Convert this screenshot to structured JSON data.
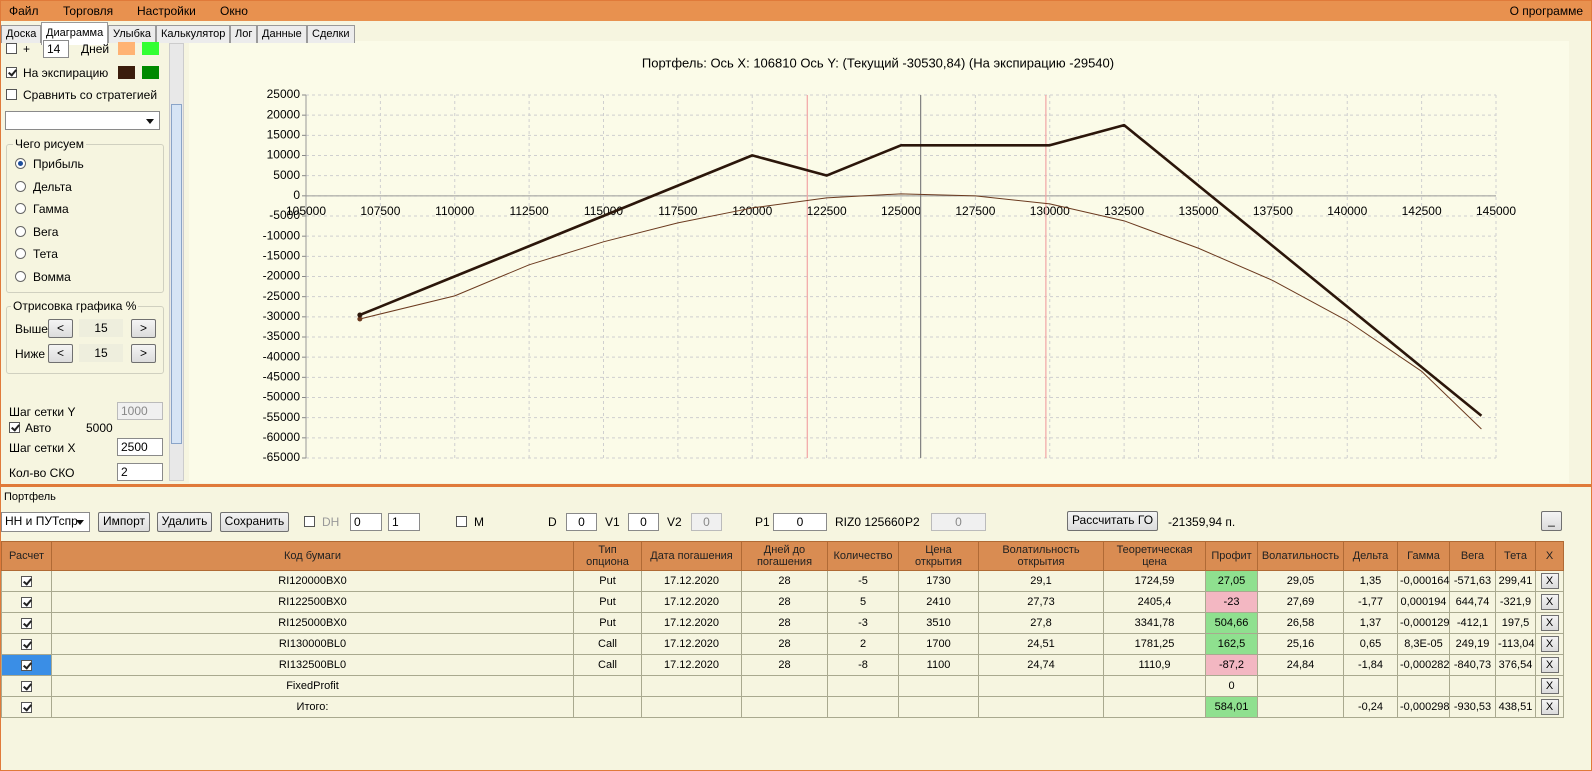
{
  "menu": [
    "Файл",
    "Торговля",
    "Настройки",
    "Окно"
  ],
  "about": "О программе",
  "tabs": [
    "Доска",
    "Диаграмма",
    "Улыбка",
    "Калькулятор",
    "Лог",
    "Данные",
    "Сделки"
  ],
  "settings": {
    "plus": "+",
    "days_value": "14",
    "days_label": "Дней",
    "expiry_label": "На экспирацию",
    "compare_label": "Сравнить со стратегией",
    "draw_group": "Чего рисуем",
    "draw_options": [
      "Прибыль",
      "Дельта",
      "Гамма",
      "Вега",
      "Тета",
      "Вомма"
    ],
    "plot_group": "Отрисовка графика %",
    "above_label": "Выше",
    "above_value": "15",
    "below_label": "Ниже",
    "below_value": "15",
    "prev": "<",
    "next": ">",
    "grid_y_label": "Шаг сетки Y",
    "grid_y_value": "1000",
    "auto_label": "Авто",
    "auto_value": "5000",
    "grid_x_label": "Шаг сетки X",
    "grid_x_value": "2500",
    "sko_label": "Кол-во СКО",
    "sko_value": "2"
  },
  "chart_data": {
    "type": "line",
    "title": "Портфель: Ось X: 106810 Ось Y:  (Текущий -30530,84)  (На экспирацию -29540)",
    "x": [
      106810,
      110000,
      112500,
      115000,
      117500,
      120000,
      122500,
      125000,
      127500,
      130000,
      132500,
      135000,
      137500,
      140000,
      142500,
      144510
    ],
    "series": [
      {
        "color": "#6b3a1f",
        "width": 1,
        "values": [
          -30530.84,
          -24800,
          -17100,
          -11400,
          -6700,
          -3000,
          -500,
          500,
          0,
          -2000,
          -6200,
          -13000,
          -21000,
          -31000,
          -43500,
          -57800
        ]
      },
      {
        "color": "#2b160a",
        "width": 2.6,
        "values": [
          -29540,
          -19970,
          -12470,
          -4970,
          2530,
          10030,
          5030,
          12530,
          12530,
          12530,
          17530,
          2530,
          -12470,
          -27470,
          -42470,
          -54530
        ]
      }
    ],
    "reference_lines": [
      {
        "value": 121850,
        "color": "#f2a5a5"
      },
      {
        "value": 129870,
        "color": "#f2a5a5"
      },
      {
        "value": 125660,
        "color": "#808080"
      }
    ],
    "xlim": [
      105000,
      145000
    ],
    "xticks": [
      105000,
      107500,
      110000,
      112500,
      115000,
      117500,
      120000,
      122500,
      125000,
      127500,
      130000,
      132500,
      135000,
      137500,
      140000,
      142500,
      145000
    ],
    "ylim": [
      -65000,
      25000
    ],
    "yticks": [
      25000,
      20000,
      15000,
      10000,
      5000,
      0,
      -5000,
      -10000,
      -15000,
      -20000,
      -25000,
      -30000,
      -35000,
      -40000,
      -45000,
      -50000,
      -55000,
      -60000,
      -65000
    ],
    "grid": true
  },
  "portfolio": {
    "title": "Портфель",
    "strategy": "НН и ПУТспр",
    "buttons": [
      "Импорт",
      "Удалить",
      "Сохранить"
    ],
    "dh_label": "DH",
    "spin1": "0",
    "spin2": "1",
    "m_label": "M",
    "d_label": "D",
    "d_value": "0",
    "v1_label": "V1",
    "v1_value": "0",
    "v2_label": "V2",
    "v2_value": "0",
    "p1_label": "P1",
    "p1_value": "0",
    "underlying": "RIZ0 125660",
    "p2_label": "P2",
    "p2_value": "0",
    "go_button": "Рассчитать ГО",
    "go_value": "-21359,94 п.",
    "minimize": "_"
  },
  "table": {
    "columns": [
      "Расчет",
      "Код бумаги",
      "Тип опциона",
      "Дата погашения",
      "Дней до погашения",
      "Количество",
      "Цена открытия",
      "Волатильность открытия",
      "Теоретическая цена",
      "Профит",
      "Волатильность",
      "Дельта",
      "Гамма",
      "Вега",
      "Тета",
      "X"
    ],
    "rows": [
      [
        "RI120000BX0",
        "Put",
        "17.12.2020",
        "28",
        "-5",
        "1730",
        "29,1",
        "1724,59",
        "27,05",
        "29,05",
        "1,35",
        "-0,000164",
        "-571,63",
        "299,41",
        "X"
      ],
      [
        "RI122500BX0",
        "Put",
        "17.12.2020",
        "28",
        "5",
        "2410",
        "27,73",
        "2405,4",
        "-23",
        "27,69",
        "-1,77",
        "0,000194",
        "644,74",
        "-321,9",
        "X"
      ],
      [
        "RI125000BX0",
        "Put",
        "17.12.2020",
        "28",
        "-3",
        "3510",
        "27,8",
        "3341,78",
        "504,66",
        "26,58",
        "1,37",
        "-0,000129",
        "-412,1",
        "197,5",
        "X"
      ],
      [
        "RI130000BL0",
        "Call",
        "17.12.2020",
        "28",
        "2",
        "1700",
        "24,51",
        "1781,25",
        "162,5",
        "25,16",
        "0,65",
        "8,3E-05",
        "249,19",
        "-113,04",
        "X"
      ],
      [
        "RI132500BL0",
        "Call",
        "17.12.2020",
        "28",
        "-8",
        "1100",
        "24,74",
        "1110,9",
        "-87,2",
        "24,84",
        "-1,84",
        "-0,000282",
        "-840,73",
        "376,54",
        "X"
      ],
      [
        "FixedProfit",
        null,
        null,
        null,
        null,
        null,
        null,
        null,
        "0",
        null,
        null,
        null,
        null,
        null,
        "X"
      ],
      [
        "Итого:",
        null,
        null,
        null,
        null,
        null,
        null,
        null,
        "584,01",
        null,
        "-0,24",
        "-0,000298",
        "-930,53",
        "438,51",
        "X"
      ]
    ]
  }
}
